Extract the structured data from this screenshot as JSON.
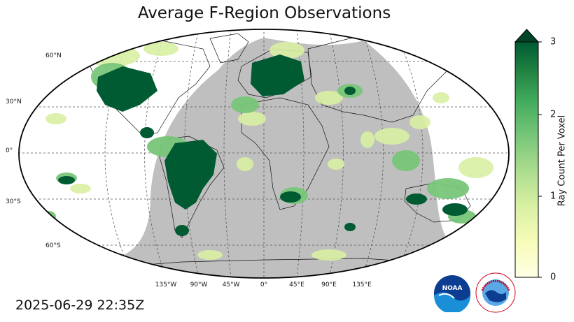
{
  "title": "Average F-Region Observations",
  "timestamp": "2025-06-29 22:35Z",
  "latitude_labels": [
    "60°N",
    "30°N",
    "0°",
    "30°S",
    "60°S"
  ],
  "longitude_labels": [
    "135°W",
    "90°W",
    "45°W",
    "0°",
    "45°E",
    "90°E",
    "135°E"
  ],
  "colorbar": {
    "label": "Ray Count Per Voxel",
    "ticks": [
      "3",
      "2",
      "1",
      "0"
    ],
    "min": 0,
    "max": 3,
    "extend": "max",
    "colormap": "YlGn",
    "color_low": "#ffffe5",
    "color_high": "#004529"
  },
  "map": {
    "projection": "Robinson",
    "night_shading_color": "#bfbfbf",
    "graticule_style": "dashed",
    "features": "coastlines and country borders"
  },
  "logos": {
    "noaa_text": "NOAA",
    "nws_text": "NATIONAL WEATHER SERVICE"
  }
}
